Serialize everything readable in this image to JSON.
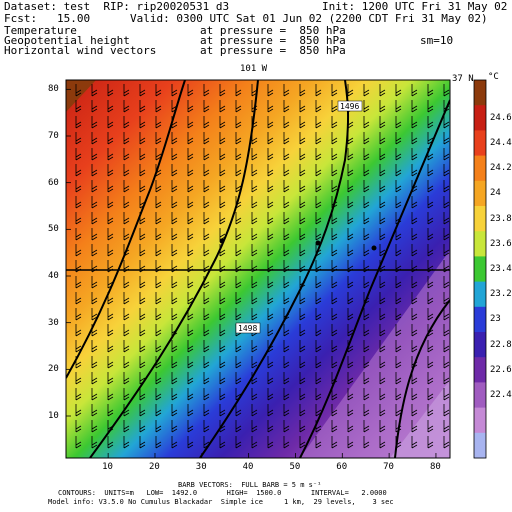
{
  "header": {
    "dataset": "Dataset: test  RIP: rip20020531 d3",
    "init": "Init: 1200 UTC Fri 31 May 02",
    "fcst": "Fcst:   15.00",
    "valid": "Valid: 0300 UTC Sat 01 Jun 02 (2200 CDT Fri 31 May 02)",
    "field1_name": "Temperature",
    "field1_level": "at pressure =  850 hPa",
    "field2_name": "Geopotential height",
    "field2_level": "at pressure =  850 hPa",
    "field2_extra": "sm=10",
    "field3_name": "Horizontal wind vectors",
    "field3_level": "at pressure =  850 hPa"
  },
  "map": {
    "top_left_label": "101 W",
    "top_right_label": "37 N",
    "x_ticks": [
      "10",
      "20",
      "30",
      "40",
      "50",
      "60",
      "70",
      "80"
    ],
    "y_ticks": [
      "10",
      "20",
      "30",
      "40",
      "50",
      "60",
      "70",
      "80"
    ],
    "contour_labels": [
      "1496",
      "1498"
    ]
  },
  "colorbar": {
    "unit": "°C",
    "labels": [
      "24.6",
      "24.4",
      "24.2",
      "24",
      "23.8",
      "23.6",
      "23.4",
      "23.2",
      "23",
      "22.8",
      "22.6",
      "22.4"
    ],
    "colors": [
      "#8c3a0c",
      "#c71f14",
      "#e8401c",
      "#f4801a",
      "#f5a623",
      "#f7d23a",
      "#c8e63a",
      "#3cc832",
      "#22a5d6",
      "#2a3cd8",
      "#3a20b0",
      "#6e2aa8",
      "#a05cc0",
      "#c58ad6",
      "#a8b4f0"
    ]
  },
  "footer": {
    "line1": "BARB VECTORS:  FULL BARB = 5 m s⁻¹",
    "line2": "CONTOURS:  UNITS=m   LOW=  1492.0       HIGH=  1500.0       INTERVAL=   2.0000",
    "line3": "Model info: V3.5.0 No Cumulus Blackadar  Simple ice     1 km,  29 levels,    3 sec"
  }
}
